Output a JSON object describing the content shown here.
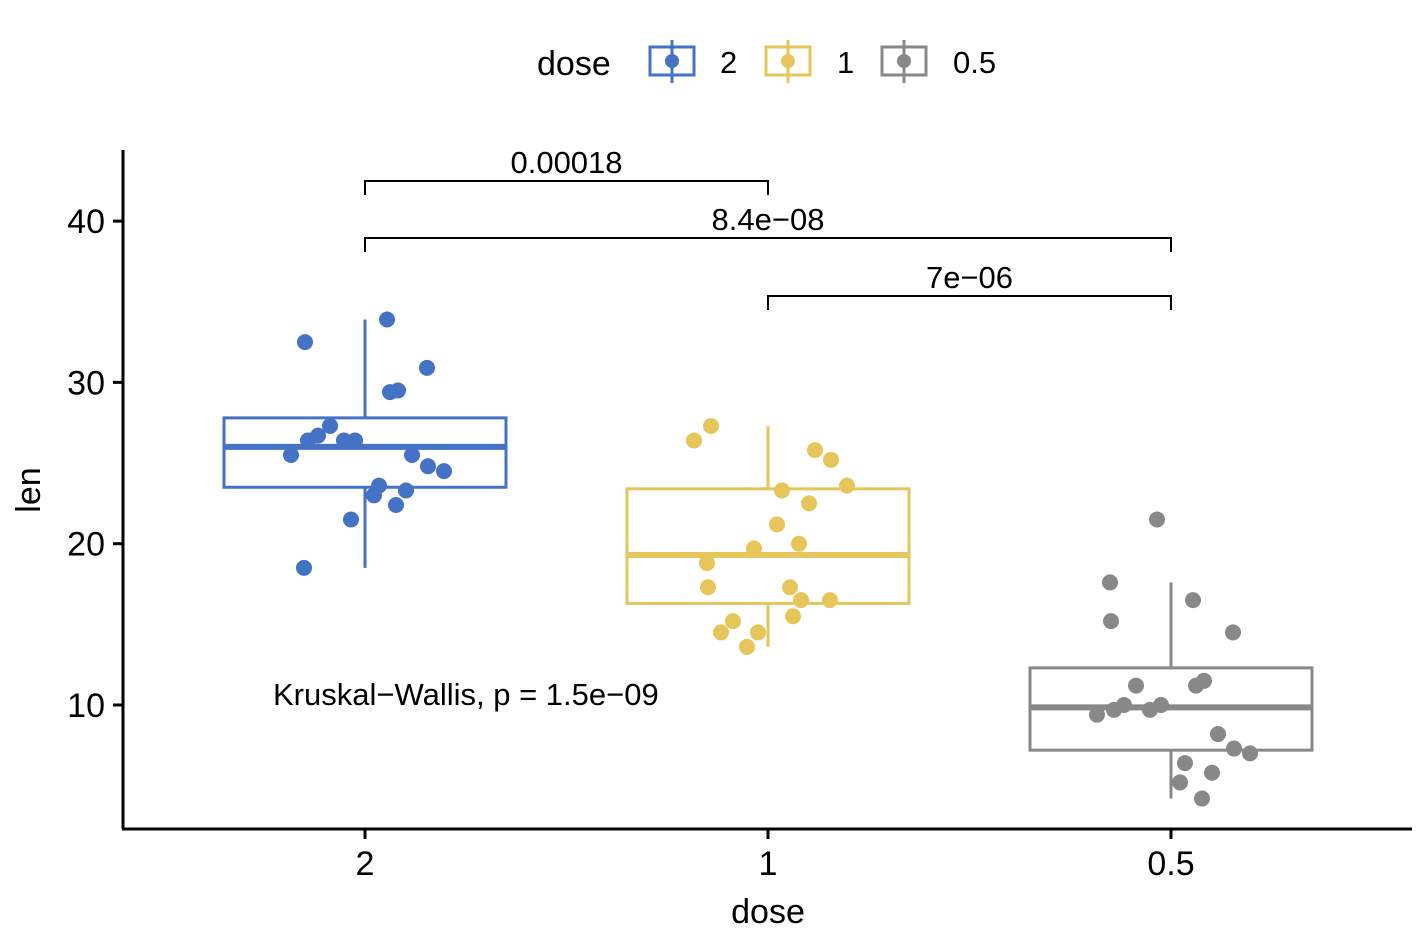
{
  "chart_data": {
    "type": "boxplot",
    "xlabel": "dose",
    "ylabel": "len",
    "categories": [
      "2",
      "1",
      "0.5"
    ],
    "yticks": [
      10,
      20,
      30,
      40
    ],
    "ylim": [
      3.5,
      44.5
    ],
    "grid": false,
    "legend": {
      "title": "dose",
      "position": "top",
      "entries": [
        "2",
        "1",
        "0.5"
      ]
    },
    "colors": {
      "2": "#4472C4",
      "1": "#E6C55A",
      "0.5": "#888888"
    },
    "boxes": [
      {
        "category": "2",
        "min": 18.5,
        "q1": 23.5,
        "median": 26.0,
        "q3": 27.8,
        "max": 33.9
      },
      {
        "category": "1",
        "min": 13.6,
        "q1": 16.3,
        "median": 19.3,
        "q3": 23.4,
        "max": 27.3
      },
      {
        "category": "0.5",
        "min": 4.2,
        "q1": 7.2,
        "median": 9.85,
        "q3": 12.3,
        "max": 17.6
      }
    ],
    "points": [
      {
        "category": "2",
        "values": [
          33.9,
          32.5,
          30.9,
          29.5,
          29.4,
          27.3,
          26.7,
          26.4,
          26.4,
          26.4,
          25.5,
          25.5,
          24.8,
          24.5,
          23.6,
          23.3,
          23.0,
          22.4,
          21.5,
          18.5
        ]
      },
      {
        "category": "1",
        "values": [
          27.3,
          26.4,
          25.8,
          25.2,
          23.6,
          23.3,
          22.5,
          21.2,
          20.0,
          19.7,
          18.8,
          17.3,
          17.3,
          16.5,
          16.5,
          15.5,
          15.2,
          14.5,
          14.5,
          13.6
        ]
      },
      {
        "category": "0.5",
        "values": [
          21.5,
          17.6,
          16.5,
          15.2,
          14.5,
          11.5,
          11.2,
          11.2,
          10.0,
          10.0,
          9.7,
          9.7,
          9.4,
          8.2,
          7.3,
          7.0,
          6.4,
          5.8,
          5.2,
          4.2
        ]
      }
    ],
    "comparisons": [
      {
        "group1": "2",
        "group2": "1",
        "label": "0.00018",
        "y": 42.5
      },
      {
        "group1": "2",
        "group2": "0.5",
        "label": "8.4e−08",
        "y": 38.9
      },
      {
        "group1": "1",
        "group2": "0.5",
        "label": "7e−06",
        "y": 35.3
      }
    ],
    "annotations": [
      "Kruskal−Wallis, p = 1.5e−09"
    ]
  }
}
